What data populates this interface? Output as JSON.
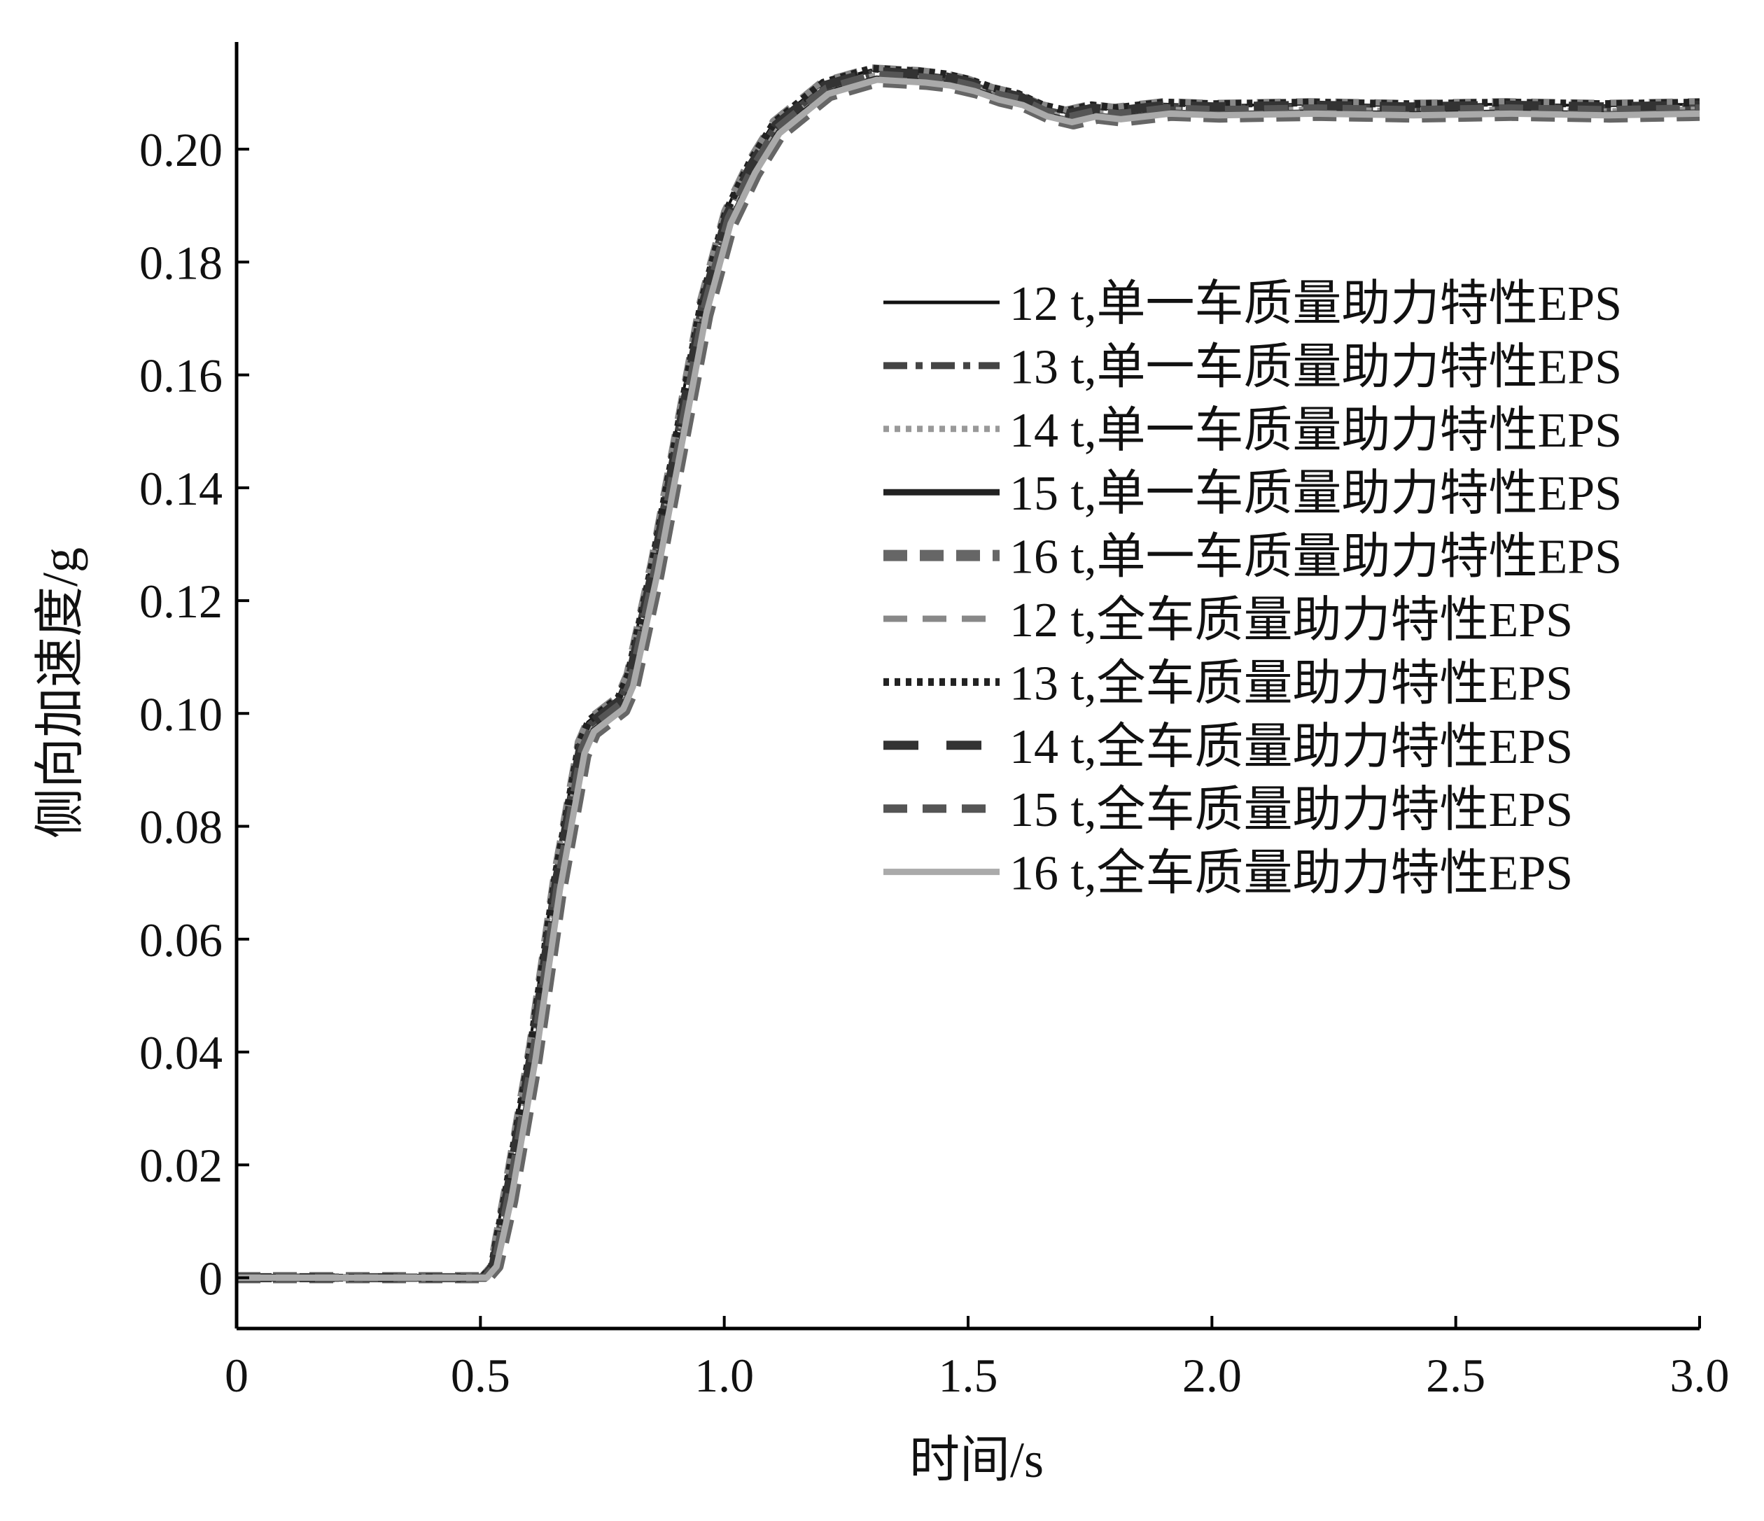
{
  "chart_data": {
    "type": "line",
    "xlabel": "时间/s",
    "ylabel": "侧向加速度/g",
    "xlim": [
      0,
      3.0
    ],
    "ylim": [
      -0.009,
      0.219
    ],
    "x_ticks": [
      {
        "value": 0,
        "label": "0"
      },
      {
        "value": 0.5,
        "label": "0.5"
      },
      {
        "value": 1.0,
        "label": "1.0"
      },
      {
        "value": 1.5,
        "label": "1.5"
      },
      {
        "value": 2.0,
        "label": "2.0"
      },
      {
        "value": 2.5,
        "label": "2.5"
      },
      {
        "value": 3.0,
        "label": "3.0"
      }
    ],
    "y_ticks": [
      {
        "value": 0,
        "label": "0"
      },
      {
        "value": 0.02,
        "label": "0.02"
      },
      {
        "value": 0.04,
        "label": "0.04"
      },
      {
        "value": 0.06,
        "label": "0.06"
      },
      {
        "value": 0.08,
        "label": "0.08"
      },
      {
        "value": 0.1,
        "label": "0.10"
      },
      {
        "value": 0.12,
        "label": "0.12"
      },
      {
        "value": 0.14,
        "label": "0.14"
      },
      {
        "value": 0.16,
        "label": "0.16"
      },
      {
        "value": 0.18,
        "label": "0.18"
      },
      {
        "value": 0.2,
        "label": "0.20"
      }
    ],
    "grid": false,
    "legend_position": "right",
    "series": [
      {
        "name": "12 t,单一车质量助力特性EPS",
        "color": "#111111",
        "dash": "solid",
        "width": 4,
        "x_shift": 0.0,
        "y_shift": 0.0005
      },
      {
        "name": "13 t,单一车质量助力特性EPS",
        "color": "#444444",
        "dash": "dashdot",
        "width": 10,
        "x_shift": 0.004,
        "y_shift": 0.0
      },
      {
        "name": "14 t,单一车质量助力特性EPS",
        "color": "#999999",
        "dash": "dot",
        "width": 9,
        "x_shift": 0.008,
        "y_shift": -0.0005
      },
      {
        "name": "15 t,单一车质量助力特性EPS",
        "color": "#222222",
        "dash": "solid",
        "width": 9,
        "x_shift": 0.012,
        "y_shift": -0.001
      },
      {
        "name": "16 t,单一车质量助力特性EPS",
        "color": "#666666",
        "dash": "bigdash",
        "width": 16,
        "x_shift": 0.016,
        "y_shift": -0.0015
      },
      {
        "name": "12 t,全车质量助力特性EPS",
        "color": "#888888",
        "dash": "dash",
        "width": 9,
        "x_shift": 0.0,
        "y_shift": 0.001
      },
      {
        "name": "13 t,全车质量助力特性EPS",
        "color": "#222222",
        "dash": "dot",
        "width": 11,
        "x_shift": 0.003,
        "y_shift": 0.0008
      },
      {
        "name": "14 t,全车质量助力特性EPS",
        "color": "#333333",
        "dash": "longdash",
        "width": 13,
        "x_shift": 0.006,
        "y_shift": 0.0003
      },
      {
        "name": "15 t,全车质量助力特性EPS",
        "color": "#555555",
        "dash": "dash",
        "width": 12,
        "x_shift": 0.009,
        "y_shift": -0.0003
      },
      {
        "name": "16 t,全车质量助力特性EPS",
        "color": "#aaaaaa",
        "dash": "solid",
        "width": 9,
        "x_shift": 0.013,
        "y_shift": -0.0012
      }
    ],
    "base_curve": {
      "x": [
        0,
        0.1,
        0.2,
        0.3,
        0.4,
        0.5,
        0.52,
        0.55,
        0.6,
        0.65,
        0.7,
        0.72,
        0.75,
        0.78,
        0.8,
        0.85,
        0.9,
        0.95,
        1.0,
        1.05,
        1.1,
        1.2,
        1.3,
        1.4,
        1.45,
        1.5,
        1.55,
        1.6,
        1.65,
        1.7,
        1.75,
        1.8,
        1.9,
        2.0,
        2.2,
        2.4,
        2.6,
        2.8,
        3.0
      ],
      "y": [
        0,
        0,
        0,
        0,
        0,
        0,
        0.002,
        0.015,
        0.04,
        0.07,
        0.094,
        0.098,
        0.1,
        0.102,
        0.106,
        0.126,
        0.149,
        0.172,
        0.188,
        0.197,
        0.204,
        0.211,
        0.2135,
        0.213,
        0.2125,
        0.2115,
        0.21,
        0.209,
        0.207,
        0.206,
        0.207,
        0.2065,
        0.2075,
        0.2072,
        0.2075,
        0.2072,
        0.2075,
        0.2072,
        0.2075
      ]
    }
  }
}
